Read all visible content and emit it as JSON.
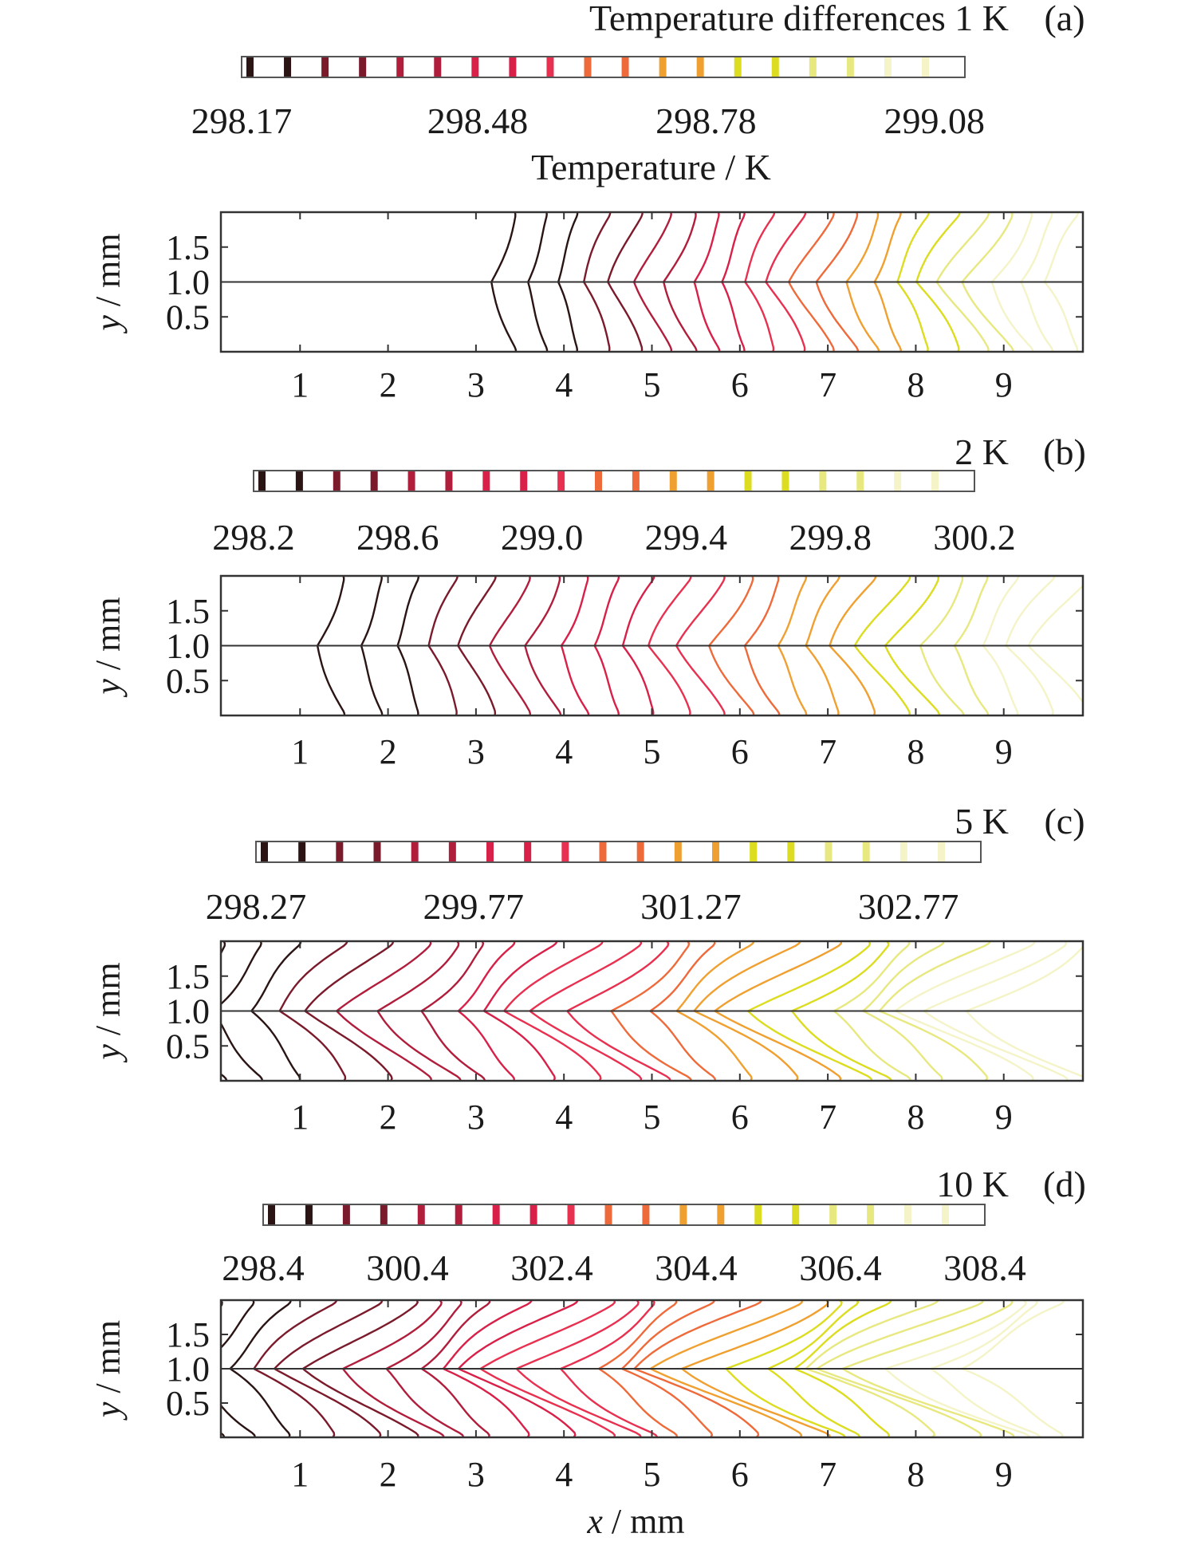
{
  "chart_data": [
    {
      "panel": "(a)",
      "type": "contour",
      "title": "Temperature differences 1 K",
      "colorbar": {
        "min": 298.17,
        "max": 299.12,
        "ticks": [
          298.17,
          298.48,
          298.78,
          299.08
        ],
        "tick_labels": [
          "298.17",
          "298.48",
          "298.78",
          "299.08"
        ],
        "label": "Temperature / K"
      },
      "x_ticks": [
        "1",
        "2",
        "3",
        "4",
        "5",
        "6",
        "7",
        "8",
        "9"
      ],
      "y_ticks": [
        "0.5",
        "1.0",
        "1.5"
      ],
      "xlabel": "",
      "ylabel": "y / mm",
      "xlim": [
        0.1,
        9.9
      ],
      "ylim": [
        0,
        2
      ],
      "front_start": 3.45,
      "front_end": 9.9,
      "levels": 22,
      "wave_amplitude": 0.5
    },
    {
      "panel": "(b)",
      "type": "contour",
      "title": "2 K",
      "colorbar": {
        "min": 298.2,
        "max": 300.2,
        "ticks": [
          298.2,
          298.6,
          299.0,
          299.4,
          299.8,
          300.2
        ],
        "tick_labels": [
          "298.2",
          "298.6",
          "299.0",
          "299.4",
          "299.8",
          "300.2"
        ],
        "label": ""
      },
      "x_ticks": [
        "1",
        "2",
        "3",
        "4",
        "5",
        "6",
        "7",
        "8",
        "9"
      ],
      "y_ticks": [
        "0.5",
        "1.0",
        "1.5"
      ],
      "xlabel": "",
      "ylabel": "y / mm",
      "xlim": [
        0.1,
        9.9
      ],
      "ylim": [
        0,
        2
      ],
      "front_start": 1.5,
      "front_end": 9.9,
      "levels": 24,
      "wave_amplitude": 0.55
    },
    {
      "panel": "(c)",
      "type": "contour",
      "title": "5 K",
      "colorbar": {
        "min": 298.27,
        "max": 303.27,
        "ticks": [
          298.27,
          299.77,
          301.27,
          302.77
        ],
        "tick_labels": [
          "298.27",
          "299.77",
          "301.27",
          "302.77"
        ],
        "label": ""
      },
      "x_ticks": [
        "1",
        "2",
        "3",
        "4",
        "5",
        "6",
        "7",
        "8",
        "9"
      ],
      "y_ticks": [
        "0.5",
        "1.0",
        "1.5"
      ],
      "xlabel": "",
      "ylabel": "y / mm",
      "xlim": [
        0.1,
        9.9
      ],
      "ylim": [
        0,
        2
      ],
      "front_start": 0.15,
      "front_end": 9.9,
      "levels": 26,
      "wave_amplitude": 1.3
    },
    {
      "panel": "(d)",
      "type": "contour",
      "title": "10 K",
      "colorbar": {
        "min": 298.4,
        "max": 308.4,
        "ticks": [
          298.4,
          300.4,
          302.4,
          304.4,
          306.4,
          308.4
        ],
        "tick_labels": [
          "298.4",
          "300.4",
          "302.4",
          "304.4",
          "306.4",
          "308.4"
        ],
        "label": ""
      },
      "x_ticks": [
        "1",
        "2",
        "3",
        "4",
        "5",
        "6",
        "7",
        "8",
        "9"
      ],
      "y_ticks": [
        "0.5",
        "1.0",
        "1.5"
      ],
      "xlabel": "x / mm",
      "ylabel": "y / mm",
      "xlim": [
        0.1,
        9.9
      ],
      "ylim": [
        0,
        2
      ],
      "front_start": 0.12,
      "front_end": 9.9,
      "levels": 28,
      "wave_amplitude": 1.6
    }
  ],
  "colors": {
    "palette": [
      "#2a1414",
      "#7a1a2a",
      "#b01e3c",
      "#d82048",
      "#e83050",
      "#ef6a3a",
      "#f0a030",
      "#dcdc20",
      "#e8e880",
      "#f4f4c8"
    ],
    "axis": "#333333",
    "centerline": "#333333"
  }
}
